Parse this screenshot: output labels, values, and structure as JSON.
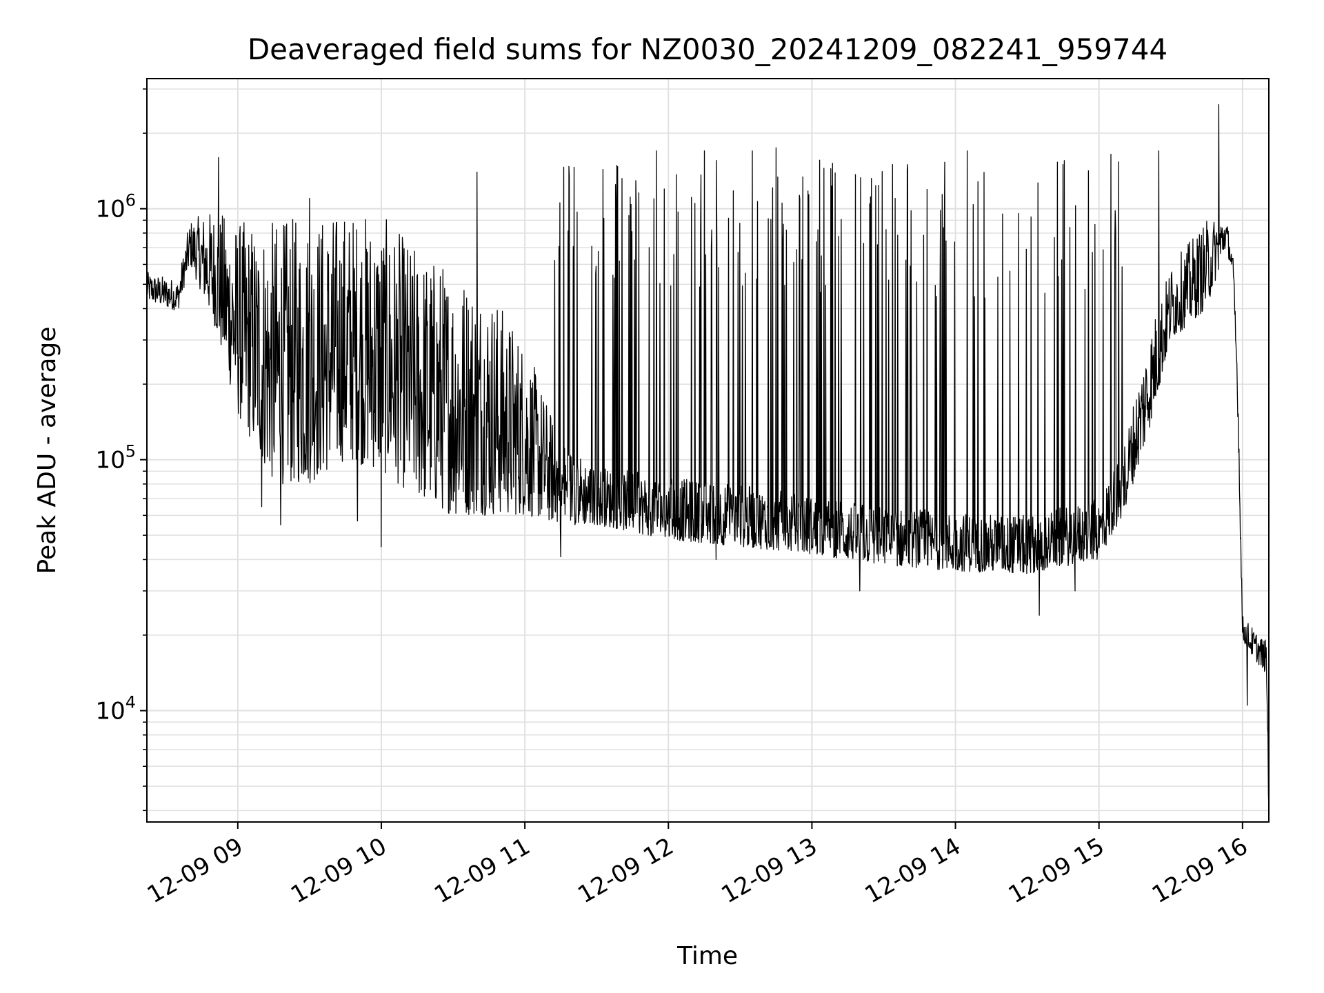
{
  "chart_data": {
    "type": "line",
    "title": "Deaveraged field sums for NZ0030_20241209_082241_959744",
    "xlabel": "Time",
    "ylabel": "Peak ADU - average",
    "x_axis": "time",
    "xlim": [
      "2024-12-09 08:22",
      "2024-12-09 16:11"
    ],
    "ylim": [
      3600,
      3300000
    ],
    "y_scale": "log",
    "grid": "major-and-minor",
    "line_color": "#000000",
    "grid_color": "#e0e0e0",
    "x_ticks": [
      {
        "value": "2024-12-09 09:00",
        "label": "12-09 09"
      },
      {
        "value": "2024-12-09 10:00",
        "label": "12-09 10"
      },
      {
        "value": "2024-12-09 11:00",
        "label": "12-09 11"
      },
      {
        "value": "2024-12-09 12:00",
        "label": "12-09 12"
      },
      {
        "value": "2024-12-09 13:00",
        "label": "12-09 13"
      },
      {
        "value": "2024-12-09 14:00",
        "label": "12-09 14"
      },
      {
        "value": "2024-12-09 15:00",
        "label": "12-09 15"
      },
      {
        "value": "2024-12-09 16:00",
        "label": "12-09 16"
      }
    ],
    "y_ticks": [
      {
        "value": 10000,
        "base": "10",
        "exp": "4"
      },
      {
        "value": 100000,
        "base": "10",
        "exp": "5"
      },
      {
        "value": 1000000,
        "base": "10",
        "exp": "6"
      }
    ],
    "envelope": [
      {
        "x": "2024-12-09 08:22",
        "low": 430000,
        "high": 560000
      },
      {
        "x": "2024-12-09 08:35",
        "low": 390000,
        "high": 520000
      },
      {
        "x": "2024-12-09 08:40",
        "low": 600000,
        "high": 900000
      },
      {
        "x": "2024-12-09 08:50",
        "low": 350000,
        "high": 1000000
      },
      {
        "x": "2024-12-09 09:00",
        "low": 150000,
        "high": 900000
      },
      {
        "x": "2024-12-09 09:15",
        "low": 80000,
        "high": 900000
      },
      {
        "x": "2024-12-09 09:30",
        "low": 80000,
        "high": 950000
      },
      {
        "x": "2024-12-09 09:45",
        "low": 100000,
        "high": 1000000
      },
      {
        "x": "2024-12-09 10:00",
        "low": 90000,
        "high": 950000
      },
      {
        "x": "2024-12-09 10:15",
        "low": 70000,
        "high": 700000
      },
      {
        "x": "2024-12-09 10:30",
        "low": 60000,
        "high": 600000
      },
      {
        "x": "2024-12-09 10:45",
        "low": 60000,
        "high": 500000
      },
      {
        "x": "2024-12-09 11:00",
        "low": 60000,
        "high": 300000
      },
      {
        "x": "2024-12-09 11:15",
        "low": 55000,
        "high": 120000
      },
      {
        "x": "2024-12-09 11:30",
        "low": 55000,
        "high": 95000
      },
      {
        "x": "2024-12-09 12:00",
        "low": 48000,
        "high": 85000
      },
      {
        "x": "2024-12-09 12:30",
        "low": 45000,
        "high": 80000
      },
      {
        "x": "2024-12-09 13:00",
        "low": 42000,
        "high": 72000
      },
      {
        "x": "2024-12-09 13:30",
        "low": 38000,
        "high": 65000
      },
      {
        "x": "2024-12-09 14:00",
        "low": 36000,
        "high": 62000
      },
      {
        "x": "2024-12-09 14:30",
        "low": 35000,
        "high": 60000
      },
      {
        "x": "2024-12-09 15:00",
        "low": 40000,
        "high": 70000
      },
      {
        "x": "2024-12-09 15:10",
        "low": 60000,
        "high": 110000
      },
      {
        "x": "2024-12-09 15:20",
        "low": 120000,
        "high": 300000
      },
      {
        "x": "2024-12-09 15:30",
        "low": 300000,
        "high": 600000
      },
      {
        "x": "2024-12-09 15:45",
        "low": 400000,
        "high": 900000
      },
      {
        "x": "2024-12-09 15:53",
        "low": 700000,
        "high": 950000
      },
      {
        "x": "2024-12-09 15:56",
        "low": 550000,
        "high": 650000
      },
      {
        "x": "2024-12-09 15:58",
        "low": 150000,
        "high": 250000
      },
      {
        "x": "2024-12-09 16:00",
        "low": 19000,
        "high": 24000
      },
      {
        "x": "2024-12-09 16:05",
        "low": 16000,
        "high": 21000
      },
      {
        "x": "2024-12-09 16:10",
        "low": 14000,
        "high": 19000
      },
      {
        "x": "2024-12-09 16:11",
        "low": 3600,
        "high": 6000
      }
    ],
    "spikes": [
      {
        "x": "2024-12-09 08:52",
        "y": 1600000
      },
      {
        "x": "2024-12-09 09:30",
        "y": 1100000
      },
      {
        "x": "2024-12-09 10:00",
        "y": 1300000
      },
      {
        "x": "2024-12-09 10:40",
        "y": 1400000
      },
      {
        "x": "2024-12-09 11:15",
        "y": 1600000
      },
      {
        "x": "2024-12-09 11:55",
        "y": 1700000
      },
      {
        "x": "2024-12-09 12:15",
        "y": 1700000
      },
      {
        "x": "2024-12-09 12:35",
        "y": 1700000
      },
      {
        "x": "2024-12-09 12:45",
        "y": 1750000
      },
      {
        "x": "2024-12-09 13:05",
        "y": 1450000
      },
      {
        "x": "2024-12-09 13:40",
        "y": 1500000
      },
      {
        "x": "2024-12-09 14:05",
        "y": 1700000
      },
      {
        "x": "2024-12-09 14:45",
        "y": 1500000
      },
      {
        "x": "2024-12-09 15:05",
        "y": 1650000
      },
      {
        "x": "2024-12-09 15:25",
        "y": 1700000
      },
      {
        "x": "2024-12-09 15:50",
        "y": 2600000
      }
    ],
    "dips": [
      {
        "x": "2024-12-09 09:10",
        "y": 65000
      },
      {
        "x": "2024-12-09 09:18",
        "y": 55000
      },
      {
        "x": "2024-12-09 09:50",
        "y": 57000
      },
      {
        "x": "2024-12-09 10:00",
        "y": 45000
      },
      {
        "x": "2024-12-09 11:15",
        "y": 41000
      },
      {
        "x": "2024-12-09 12:20",
        "y": 40000
      },
      {
        "x": "2024-12-09 13:20",
        "y": 30000
      },
      {
        "x": "2024-12-09 14:35",
        "y": 24000
      },
      {
        "x": "2024-12-09 14:50",
        "y": 30000
      },
      {
        "x": "2024-12-09 16:02",
        "y": 10500
      }
    ]
  }
}
